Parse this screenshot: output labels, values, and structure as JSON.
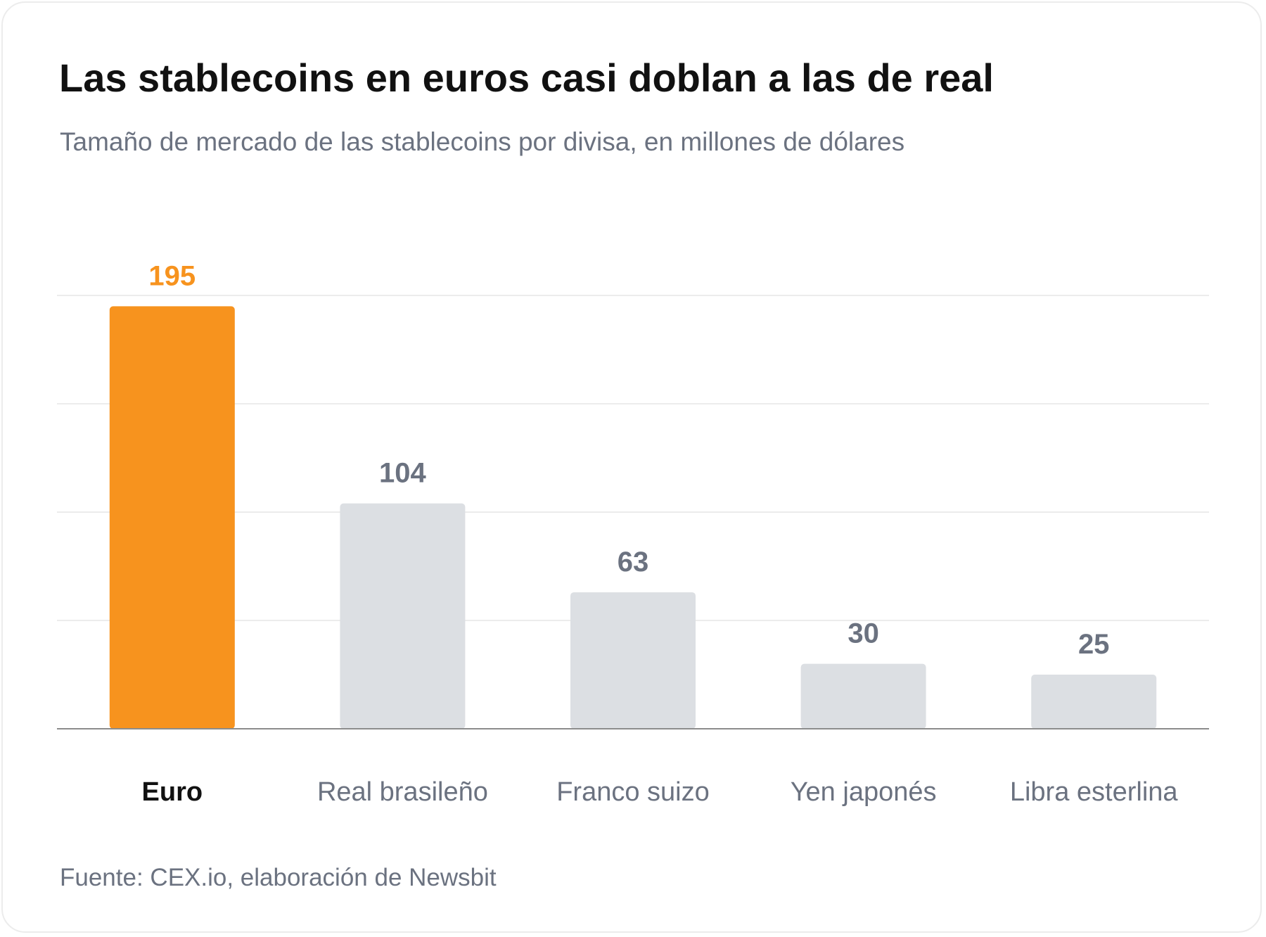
{
  "title": "Las stablecoins en euros casi doblan a las de real",
  "subtitle": "Tamaño de mercado de las stablecoins por divisa, en millones de dólares",
  "source": "Fuente: CEX.io, elaboración de Newsbit",
  "colors": {
    "highlight": "#f7931e",
    "bar": "#dcdfe3",
    "value_label": "#6b7280",
    "category_label": "#6b7280",
    "highlight_category_label": "#111111"
  },
  "chart_data": {
    "type": "bar",
    "categories": [
      "Euro",
      "Real brasileño",
      "Franco suizo",
      "Yen japonés",
      "Libra esterlina"
    ],
    "values": [
      195,
      104,
      63,
      30,
      25
    ],
    "value_labels": [
      "195",
      "104",
      "63",
      "30",
      "25"
    ],
    "highlight_index": 0,
    "ylim": [
      0,
      200
    ],
    "gridlines": [
      0,
      50,
      100,
      150,
      200
    ],
    "grid": true,
    "legend": "none"
  }
}
